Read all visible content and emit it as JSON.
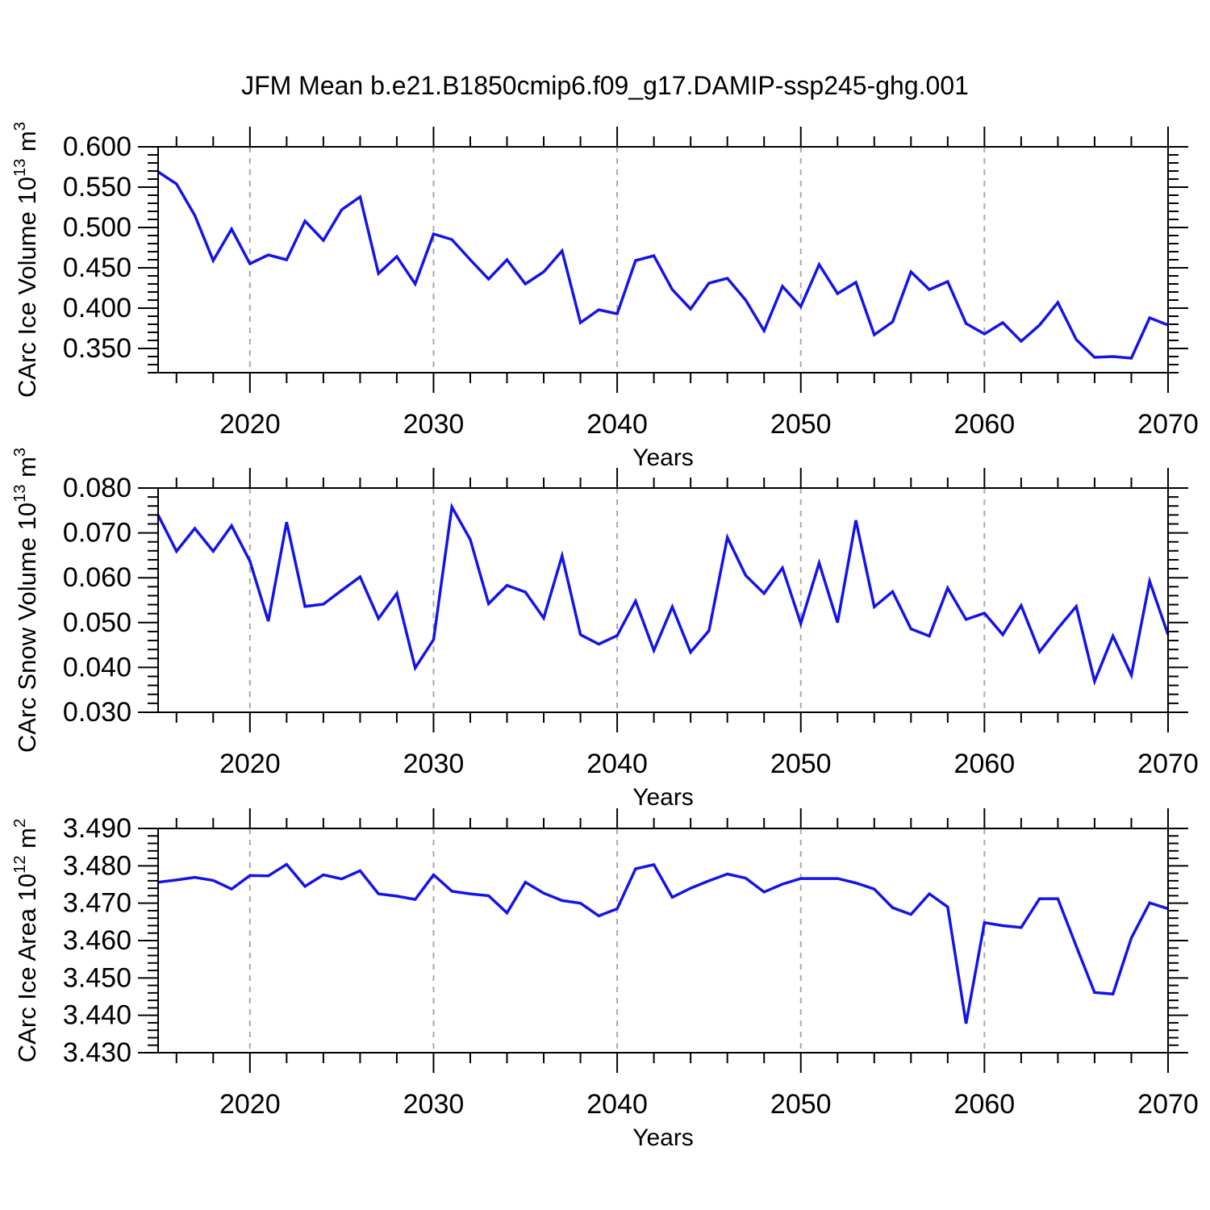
{
  "title": "JFM Mean b.e21.B1850cmip6.f09_g17.DAMIP-ssp245-ghg.001",
  "colors": {
    "line": "#1414e8",
    "grid": "#a9a9a9",
    "axis": "#000000",
    "text": "#000000"
  },
  "chart_data": {
    "type": "line",
    "title": "JFM Mean b.e21.B1850cmip6.f09_g17.DAMIP-ssp245-ghg.001",
    "xlabel": "Years",
    "legend": "none",
    "grid": "dashed vertical gridlines at decade years 2020-2060",
    "x": [
      2015,
      2016,
      2017,
      2018,
      2019,
      2020,
      2021,
      2022,
      2023,
      2024,
      2025,
      2026,
      2027,
      2028,
      2029,
      2030,
      2031,
      2032,
      2033,
      2034,
      2035,
      2036,
      2037,
      2038,
      2039,
      2040,
      2041,
      2042,
      2043,
      2044,
      2045,
      2046,
      2047,
      2048,
      2049,
      2050,
      2051,
      2052,
      2053,
      2054,
      2055,
      2056,
      2057,
      2058,
      2059,
      2060,
      2061,
      2062,
      2063,
      2064,
      2065,
      2066,
      2067,
      2068,
      2069,
      2070
    ],
    "x_major_ticks": [
      2020,
      2030,
      2040,
      2050,
      2060,
      2070
    ],
    "x_major_labels": [
      "2020",
      "2030",
      "2040",
      "2050",
      "2060",
      "2070"
    ],
    "x_minor_step_years": 2,
    "xlim": [
      2015,
      2070
    ],
    "series": [
      {
        "name": "CArc Ice Volume",
        "ylabel_plain": "CArc Ice Volume 10^13 m^3",
        "ylabel_parts": [
          {
            "t": "CArc Ice Volume 10"
          },
          {
            "t": "13",
            "sup": true
          },
          {
            "t": " m"
          },
          {
            "t": "3",
            "sup": true
          }
        ],
        "ylim": [
          0.32,
          0.6
        ],
        "ytick_values": [
          0.35,
          0.4,
          0.45,
          0.5,
          0.55,
          0.6
        ],
        "ytick_labels": [
          "0.350",
          "0.400",
          "0.450",
          "0.500",
          "0.550",
          "0.600"
        ],
        "y_minor_step": 0.01,
        "values": [
          0.569,
          0.554,
          0.515,
          0.459,
          0.498,
          0.455,
          0.466,
          0.46,
          0.508,
          0.484,
          0.522,
          0.538,
          0.443,
          0.464,
          0.43,
          0.492,
          0.485,
          0.46,
          0.436,
          0.46,
          0.43,
          0.445,
          0.471,
          0.382,
          0.398,
          0.393,
          0.459,
          0.465,
          0.423,
          0.399,
          0.431,
          0.437,
          0.41,
          0.372,
          0.427,
          0.402,
          0.454,
          0.418,
          0.432,
          0.367,
          0.383,
          0.445,
          0.423,
          0.433,
          0.381,
          0.368,
          0.382,
          0.359,
          0.379,
          0.407,
          0.361,
          0.339,
          0.34,
          0.338,
          0.388,
          0.379
        ]
      },
      {
        "name": "CArc Snow Volume",
        "ylabel_plain": "CArc Snow Volume 10^13 m^3",
        "ylabel_parts": [
          {
            "t": "CArc Snow Volume 10"
          },
          {
            "t": "13",
            "sup": true
          },
          {
            "t": " m"
          },
          {
            "t": "3",
            "sup": true
          }
        ],
        "ylim": [
          0.03,
          0.08
        ],
        "ytick_values": [
          0.03,
          0.04,
          0.05,
          0.06,
          0.07,
          0.08
        ],
        "ytick_labels": [
          "0.030",
          "0.040",
          "0.050",
          "0.060",
          "0.070",
          "0.080"
        ],
        "y_minor_step": 0.002,
        "values": [
          0.074,
          0.0659,
          0.071,
          0.0659,
          0.0716,
          0.0637,
          0.0503,
          0.0724,
          0.0536,
          0.0541,
          0.0572,
          0.0602,
          0.0509,
          0.0565,
          0.0399,
          0.0462,
          0.0758,
          0.0685,
          0.0542,
          0.0583,
          0.0568,
          0.051,
          0.0649,
          0.0473,
          0.0452,
          0.0471,
          0.0548,
          0.0438,
          0.0535,
          0.0434,
          0.0482,
          0.069,
          0.0605,
          0.0565,
          0.0622,
          0.0498,
          0.0633,
          0.05,
          0.0728,
          0.0535,
          0.0569,
          0.0486,
          0.047,
          0.0577,
          0.0507,
          0.0521,
          0.0473,
          0.0538,
          0.0435,
          0.0487,
          0.0536,
          0.0369,
          0.047,
          0.0383,
          0.0592,
          0.0473
        ]
      },
      {
        "name": "CArc Ice Area",
        "ylabel_plain": "CArc Ice Area 10^12 m^2",
        "ylabel_parts": [
          {
            "t": "CArc Ice Area 10"
          },
          {
            "t": "12",
            "sup": true
          },
          {
            "t": " m"
          },
          {
            "t": "2",
            "sup": true
          }
        ],
        "ylim": [
          3.43,
          3.49
        ],
        "ytick_values": [
          3.43,
          3.44,
          3.45,
          3.46,
          3.47,
          3.48,
          3.49
        ],
        "ytick_labels": [
          "3.430",
          "3.440",
          "3.450",
          "3.460",
          "3.470",
          "3.480",
          "3.490"
        ],
        "y_minor_step": 0.002,
        "values": [
          3.4756,
          3.4762,
          3.4769,
          3.4761,
          3.4738,
          3.4774,
          3.4773,
          3.4804,
          3.4745,
          3.4776,
          3.4765,
          3.4787,
          3.4725,
          3.4719,
          3.471,
          3.4776,
          3.4732,
          3.4725,
          3.472,
          3.4674,
          3.4756,
          3.4727,
          3.4707,
          3.47,
          3.4666,
          3.4685,
          3.4792,
          3.4803,
          3.4716,
          3.474,
          3.476,
          3.4778,
          3.4767,
          3.473,
          3.4751,
          3.4766,
          3.4766,
          3.4766,
          3.4754,
          3.4738,
          3.4688,
          3.467,
          3.4725,
          3.469,
          3.4378,
          3.4648,
          3.464,
          3.4635,
          3.4712,
          3.4712,
          3.4585,
          3.4461,
          3.4457,
          3.4607,
          3.4701,
          3.4685
        ]
      }
    ]
  }
}
